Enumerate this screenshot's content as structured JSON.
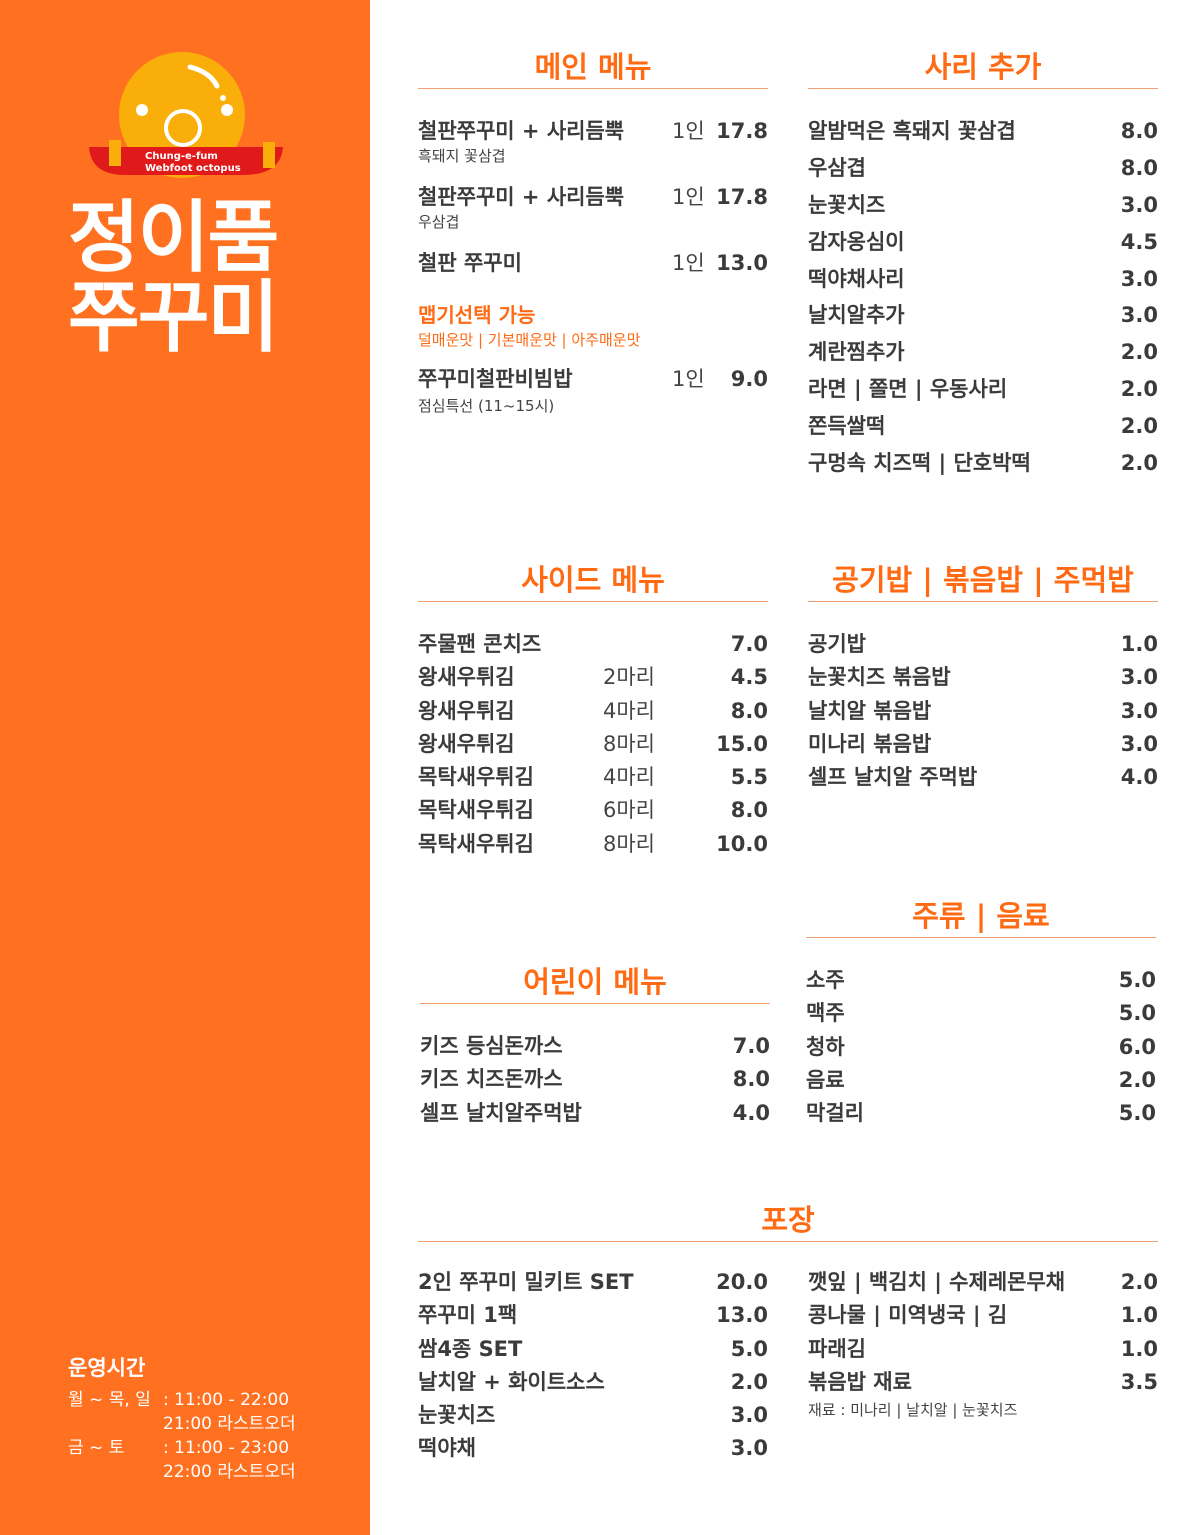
{
  "brand": {
    "logo_text_1": "Chung-e-fum",
    "logo_text_2": "Webfoot octopus",
    "name_line1": "정이품",
    "name_line2": "쭈꾸미",
    "colors": {
      "orange": "#FF7120",
      "yellow": "#F9AE0A",
      "red": "#E01A1A"
    }
  },
  "hours": {
    "title": "운영시간",
    "rows": [
      {
        "days": "월 ~ 목, 일",
        "time": ": 11:00 - 22:00"
      },
      {
        "days": "",
        "time": "21:00 라스트오더"
      },
      {
        "days": "금 ~ 토",
        "time": ": 11:00 - 23:00"
      },
      {
        "days": "",
        "time": "22:00 라스트오더"
      }
    ]
  },
  "main": {
    "title": "메인 메뉴",
    "items": [
      {
        "name": "철판쭈꾸미 + 사리듬뿍",
        "qty": "1인",
        "price": "17.8",
        "sub": "흑돼지 꽃삼겹"
      },
      {
        "name": "철판쭈꾸미 + 사리듬뿍",
        "qty": "1인",
        "price": "17.8",
        "sub": "우삼겹"
      },
      {
        "name": "철판 쭈꾸미",
        "qty": "1인",
        "price": "13.0"
      }
    ],
    "spice_title": "맵기선택 가능",
    "spice_options": "덜매운맛 | 기본매운맛 | 아주매운맛",
    "lunch": {
      "name": "쭈꾸미철판비빔밥",
      "qty": "1인",
      "price": "9.0",
      "sub": "점심특선 (11~15시)"
    }
  },
  "sari": {
    "title": "사리 추가",
    "items": [
      {
        "name": "알밤먹은 흑돼지 꽃삼겹",
        "price": "8.0"
      },
      {
        "name": "우삼겹",
        "price": "8.0"
      },
      {
        "name": "눈꽃치즈",
        "price": "3.0"
      },
      {
        "name": "감자옹심이",
        "price": "4.5"
      },
      {
        "name": "떡야채사리",
        "price": "3.0"
      },
      {
        "name": "날치알추가",
        "price": "3.0"
      },
      {
        "name": "계란찜추가",
        "price": "2.0"
      },
      {
        "name": "라면 | 쫄면 | 우동사리",
        "price": "2.0"
      },
      {
        "name": "쫀득쌀떡",
        "price": "2.0"
      },
      {
        "name": "구멍속 치즈떡 | 단호박떡",
        "price": "2.0"
      }
    ]
  },
  "side": {
    "title": "사이드 메뉴",
    "items": [
      {
        "name": "주물팬 콘치즈",
        "qty": "",
        "price": "7.0"
      },
      {
        "name": "왕새우튀김",
        "qty": "2마리",
        "price": "4.5"
      },
      {
        "name": "왕새우튀김",
        "qty": "4마리",
        "price": "8.0"
      },
      {
        "name": "왕새우튀김",
        "qty": "8마리",
        "price": "15.0"
      },
      {
        "name": "목탁새우튀김",
        "qty": "4마리",
        "price": "5.5"
      },
      {
        "name": "목탁새우튀김",
        "qty": "6마리",
        "price": "8.0"
      },
      {
        "name": "목탁새우튀김",
        "qty": "8마리",
        "price": "10.0"
      }
    ]
  },
  "rice": {
    "title": "공기밥 | 볶음밥 | 주먹밥",
    "items": [
      {
        "name": "공기밥",
        "price": "1.0"
      },
      {
        "name": "눈꽃치즈 볶음밥",
        "price": "3.0"
      },
      {
        "name": "날치알 볶음밥",
        "price": "3.0"
      },
      {
        "name": "미나리 볶음밥",
        "price": "3.0"
      },
      {
        "name": "셀프 날치알 주먹밥",
        "price": "4.0"
      }
    ]
  },
  "drinks": {
    "title": "주류 | 음료",
    "items": [
      {
        "name": "소주",
        "price": "5.0"
      },
      {
        "name": "맥주",
        "price": "5.0"
      },
      {
        "name": "청하",
        "price": "6.0"
      },
      {
        "name": "음료",
        "price": "2.0"
      },
      {
        "name": "막걸리",
        "price": "5.0"
      }
    ]
  },
  "kids": {
    "title": "어린이 메뉴",
    "items": [
      {
        "name": "키즈 등심돈까스",
        "price": "7.0"
      },
      {
        "name": "키즈 치즈돈까스",
        "price": "8.0"
      },
      {
        "name": "셀프 날치알주먹밥",
        "price": "4.0"
      }
    ]
  },
  "takeout": {
    "title": "포장",
    "left": [
      {
        "name": "2인 쭈꾸미 밀키트 SET",
        "price": "20.0"
      },
      {
        "name": "쭈꾸미 1팩",
        "price": "13.0"
      },
      {
        "name": "쌈4종 SET",
        "price": "5.0"
      },
      {
        "name": "날치알 + 화이트소스",
        "price": "2.0"
      },
      {
        "name": "눈꽃치즈",
        "price": "3.0"
      },
      {
        "name": "떡야채",
        "price": "3.0"
      }
    ],
    "right": [
      {
        "name": "깻잎 | 백김치 | 수제레몬무채",
        "price": "2.0"
      },
      {
        "name": "콩나물 | 미역냉국 | 김",
        "price": "1.0"
      },
      {
        "name": "파래김",
        "price": "1.0"
      },
      {
        "name": "볶음밥 재료",
        "price": "3.5"
      }
    ],
    "note": "재료 : 미나리 | 날치알 | 눈꽃치즈"
  }
}
